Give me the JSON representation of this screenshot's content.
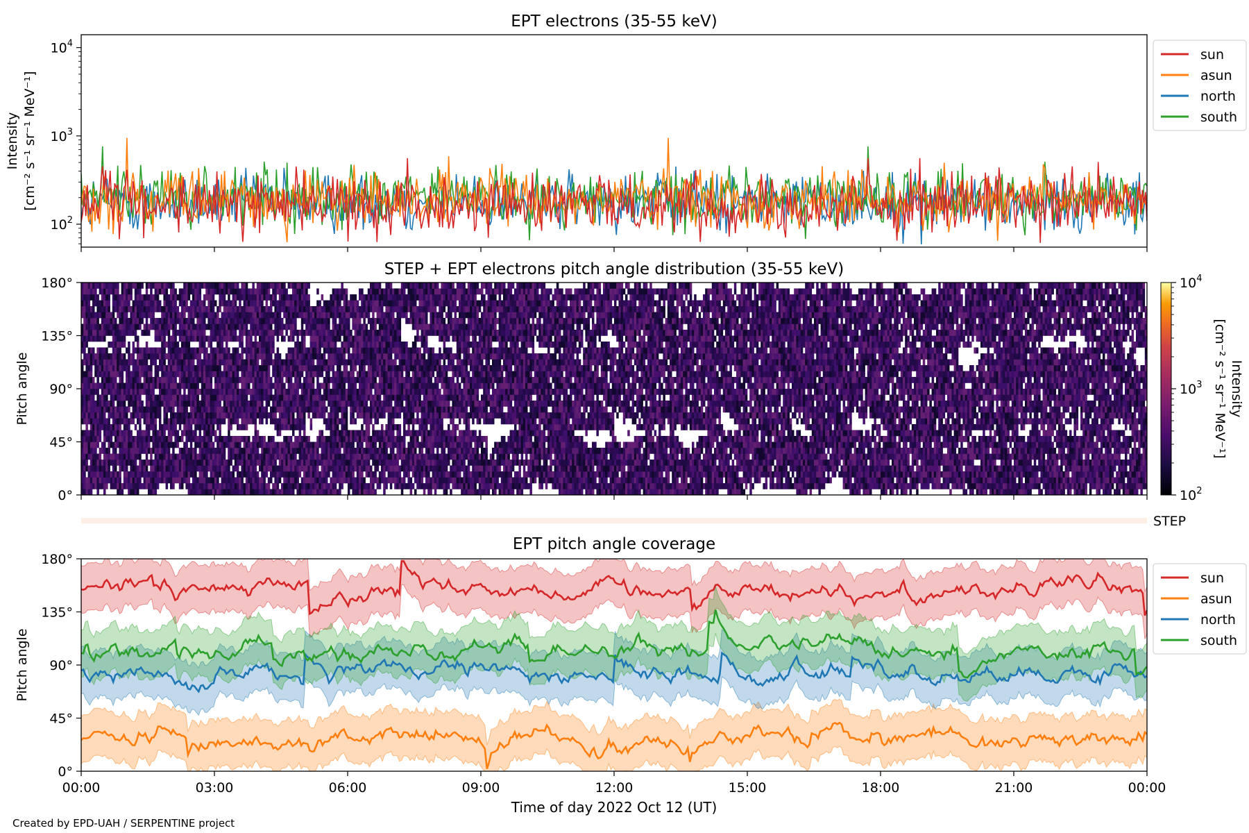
{
  "footer": "Created by EPD-UAH / SERPENTINE project",
  "colors": {
    "sun": "#d62728",
    "asun": "#ff7f0e",
    "north": "#1f77b4",
    "south": "#2ca02c"
  },
  "chart_data": [
    {
      "type": "line",
      "title": "EPT electrons (35-55 keV)",
      "ylabel_line1": "Intensity",
      "ylabel_line2": "[cm⁻² s⁻¹ sr⁻¹ MeV⁻¹]",
      "yscale": "log",
      "ylim": [
        55,
        14000
      ],
      "yticks": [
        {
          "value": 100,
          "base": "10",
          "exp": "2"
        },
        {
          "value": 1000,
          "base": "10",
          "exp": "3"
        },
        {
          "value": 10000,
          "base": "10",
          "exp": "4"
        }
      ],
      "xlim_hours": [
        0,
        24
      ],
      "legend_position": "outside-right",
      "series": [
        {
          "name": "sun",
          "color": "#d62728",
          "typical": 170,
          "min": 55,
          "max": 560
        },
        {
          "name": "asun",
          "color": "#ff7f0e",
          "typical": 190,
          "min": 55,
          "max": 950
        },
        {
          "name": "north",
          "color": "#1f77b4",
          "typical": 180,
          "min": 55,
          "max": 520
        },
        {
          "name": "south",
          "color": "#2ca02c",
          "typical": 200,
          "min": 55,
          "max": 760
        }
      ]
    },
    {
      "type": "heatmap",
      "title": "STEP + EPT electrons pitch angle distribution (35-55 keV)",
      "ylabel": "Pitch angle",
      "yticks": [
        "0°",
        "45°",
        "90°",
        "135°",
        "180°"
      ],
      "ylim": [
        0,
        180
      ],
      "xlim_hours": [
        0,
        24
      ],
      "colorbar": {
        "label_line1": "Intensity",
        "label_line2": "[cm⁻² s⁻¹ sr⁻¹ MeV⁻¹]",
        "scale": "log",
        "range": [
          100,
          10000
        ],
        "ticks": [
          {
            "value": 100,
            "base": "10",
            "exp": "2"
          },
          {
            "value": 1000,
            "base": "10",
            "exp": "3"
          },
          {
            "value": 10000,
            "base": "10",
            "exp": "4"
          }
        ],
        "colormap": "inferno"
      },
      "typical_intensity": [
        150,
        300
      ]
    },
    {
      "type": "band",
      "label": "STEP",
      "color": "#fdeee6"
    },
    {
      "type": "line",
      "title": "EPT pitch angle coverage",
      "ylabel": "Pitch angle",
      "xlabel": "Time of day 2022 Oct 12 (UT)",
      "yticks": [
        "0°",
        "45°",
        "90°",
        "135°",
        "180°"
      ],
      "ylim": [
        0,
        180
      ],
      "xlim_hours": [
        0,
        24
      ],
      "xticks": [
        "00:00",
        "03:00",
        "06:00",
        "09:00",
        "12:00",
        "15:00",
        "18:00",
        "21:00",
        "00:00"
      ],
      "legend_position": "outside-right",
      "series": [
        {
          "name": "sun",
          "color": "#d62728",
          "mean_deg": 155,
          "band_halfwidth_deg": 20
        },
        {
          "name": "asun",
          "color": "#ff7f0e",
          "mean_deg": 28,
          "band_halfwidth_deg": 20
        },
        {
          "name": "north",
          "color": "#1f77b4",
          "mean_deg": 82,
          "band_halfwidth_deg": 20
        },
        {
          "name": "south",
          "color": "#2ca02c",
          "mean_deg": 102,
          "band_halfwidth_deg": 20
        }
      ]
    }
  ]
}
